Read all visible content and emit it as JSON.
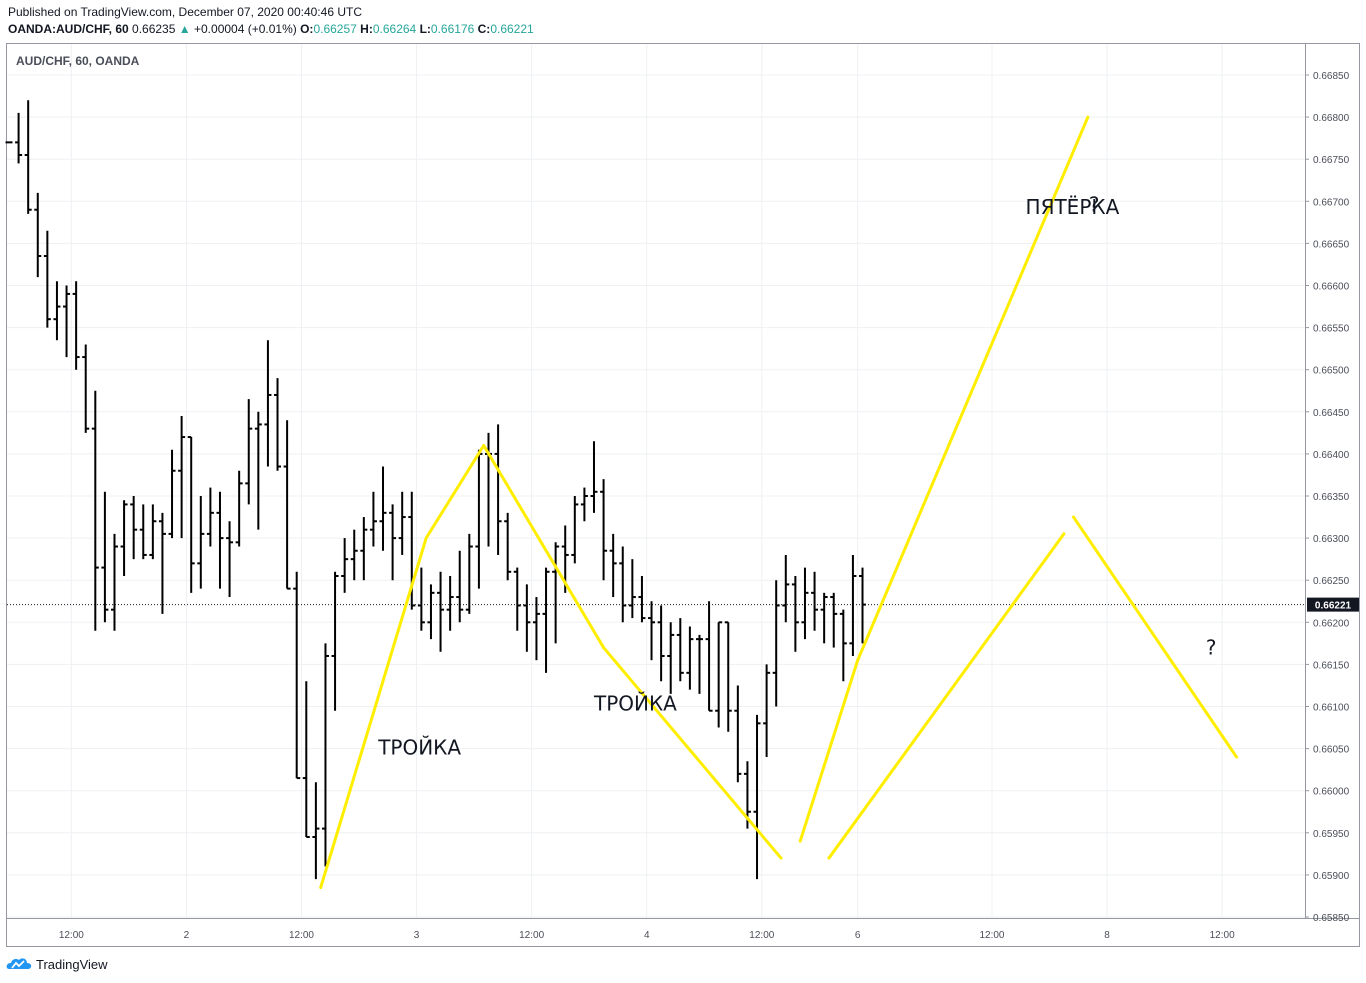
{
  "header": {
    "published": "Published on TradingView.com, December 07, 2020 00:40:46 UTC",
    "symbol": "OANDA:AUD/CHF, 60",
    "last": "0.66235",
    "change": "+0.00004 (+0.01%)",
    "o_label": "O:",
    "o_value": "0.66257",
    "h_label": "H:",
    "h_value": "0.66264",
    "l_label": "L:",
    "l_value": "0.66176",
    "c_label": "C:",
    "c_value": "0.66221"
  },
  "watermark": "AUD/CHF, 60, OANDA",
  "footer": {
    "brand": "TradingView"
  },
  "colors": {
    "bars": "#000000",
    "annotation": "#ffee00",
    "price_tag_bg": "#131722",
    "up": "#26a69a"
  },
  "chart_data": {
    "type": "ohlc",
    "title": "AUD/CHF, 60, OANDA",
    "current_price": 0.66221,
    "current_price_label": "0.66221",
    "ylim": [
      0.65845,
      0.6688
    ],
    "y_ticks": [
      "0.66850",
      "0.66800",
      "0.66750",
      "0.66700",
      "0.66650",
      "0.66600",
      "0.66550",
      "0.66500",
      "0.66450",
      "0.66400",
      "0.66350",
      "0.66300",
      "0.66250",
      "0.66200",
      "0.66150",
      "0.66100",
      "0.66050",
      "0.66000",
      "0.65950",
      "0.65900",
      "0.65850"
    ],
    "x_ticks": [
      {
        "label": "12:00",
        "i": 6.5
      },
      {
        "label": "2",
        "i": 18.5
      },
      {
        "label": "12:00",
        "i": 30.5
      },
      {
        "label": "3",
        "i": 42.5
      },
      {
        "label": "12:00",
        "i": 54.5
      },
      {
        "label": "4",
        "i": 66.5
      },
      {
        "label": "12:00",
        "i": 78.5
      },
      {
        "label": "6",
        "i": 88.5
      },
      {
        "label": "12:00",
        "i": 102.5
      },
      {
        "label": "8",
        "i": 114.5
      },
      {
        "label": "12:00",
        "i": 126.5
      }
    ],
    "grid": true,
    "bars": [
      [
        0.6677,
        0.6677,
        0.6677,
        0.6677
      ],
      [
        0.6677,
        0.66805,
        0.66745,
        0.66755
      ],
      [
        0.66755,
        0.6682,
        0.66685,
        0.6669
      ],
      [
        0.6669,
        0.6671,
        0.6661,
        0.66635
      ],
      [
        0.66635,
        0.66665,
        0.6655,
        0.6656
      ],
      [
        0.6656,
        0.66605,
        0.66535,
        0.66575
      ],
      [
        0.66575,
        0.666,
        0.66515,
        0.6659
      ],
      [
        0.6659,
        0.66605,
        0.665,
        0.66515
      ],
      [
        0.66515,
        0.6653,
        0.66425,
        0.6643
      ],
      [
        0.6643,
        0.66475,
        0.6619,
        0.66265
      ],
      [
        0.66265,
        0.66355,
        0.662,
        0.66215
      ],
      [
        0.66215,
        0.66305,
        0.6619,
        0.6629
      ],
      [
        0.6629,
        0.66345,
        0.66255,
        0.6634
      ],
      [
        0.6634,
        0.6635,
        0.66275,
        0.6631
      ],
      [
        0.6631,
        0.6634,
        0.66275,
        0.6628
      ],
      [
        0.6628,
        0.6634,
        0.66275,
        0.6632
      ],
      [
        0.6632,
        0.6633,
        0.6621,
        0.66305
      ],
      [
        0.66305,
        0.66405,
        0.663,
        0.6638
      ],
      [
        0.6638,
        0.66445,
        0.663,
        0.6642
      ],
      [
        0.6642,
        0.6642,
        0.66235,
        0.6627
      ],
      [
        0.6627,
        0.6635,
        0.6624,
        0.66305
      ],
      [
        0.66305,
        0.6636,
        0.6629,
        0.6633
      ],
      [
        0.6633,
        0.66355,
        0.6624,
        0.663
      ],
      [
        0.663,
        0.6632,
        0.6623,
        0.66295
      ],
      [
        0.66295,
        0.6638,
        0.6629,
        0.66365
      ],
      [
        0.66365,
        0.66465,
        0.6634,
        0.6643
      ],
      [
        0.6643,
        0.6645,
        0.6631,
        0.66435
      ],
      [
        0.66435,
        0.66535,
        0.66385,
        0.6647
      ],
      [
        0.6647,
        0.6649,
        0.6638,
        0.66385
      ],
      [
        0.66385,
        0.6644,
        0.6624,
        0.6624
      ],
      [
        0.6624,
        0.6626,
        0.66015,
        0.66015
      ],
      [
        0.66015,
        0.6613,
        0.65945,
        0.65945
      ],
      [
        0.65945,
        0.6601,
        0.65895,
        0.65955
      ],
      [
        0.65955,
        0.66175,
        0.6591,
        0.6616
      ],
      [
        0.6616,
        0.6626,
        0.66095,
        0.66255
      ],
      [
        0.66255,
        0.663,
        0.66235,
        0.66275
      ],
      [
        0.66275,
        0.6631,
        0.6625,
        0.66285
      ],
      [
        0.66285,
        0.66325,
        0.6625,
        0.6631
      ],
      [
        0.6631,
        0.66355,
        0.6629,
        0.6632
      ],
      [
        0.6632,
        0.66385,
        0.66285,
        0.6633
      ],
      [
        0.6633,
        0.6634,
        0.6625,
        0.663
      ],
      [
        0.663,
        0.66355,
        0.6628,
        0.66325
      ],
      [
        0.66325,
        0.66355,
        0.66215,
        0.6622
      ],
      [
        0.6622,
        0.66265,
        0.6619,
        0.662
      ],
      [
        0.662,
        0.66245,
        0.6618,
        0.66235
      ],
      [
        0.66235,
        0.6626,
        0.66165,
        0.66215
      ],
      [
        0.66215,
        0.66255,
        0.6619,
        0.6623
      ],
      [
        0.6623,
        0.66285,
        0.662,
        0.66215
      ],
      [
        0.66215,
        0.66305,
        0.6621,
        0.6629
      ],
      [
        0.6629,
        0.66405,
        0.6624,
        0.664
      ],
      [
        0.664,
        0.66425,
        0.6629,
        0.664
      ],
      [
        0.664,
        0.66435,
        0.6628,
        0.6632
      ],
      [
        0.6632,
        0.6633,
        0.6625,
        0.6626
      ],
      [
        0.6626,
        0.66265,
        0.6619,
        0.6622
      ],
      [
        0.6622,
        0.66245,
        0.66165,
        0.662
      ],
      [
        0.662,
        0.6623,
        0.66155,
        0.6621
      ],
      [
        0.6621,
        0.66265,
        0.6614,
        0.6626
      ],
      [
        0.6626,
        0.66295,
        0.66175,
        0.6629
      ],
      [
        0.6629,
        0.66315,
        0.66235,
        0.6628
      ],
      [
        0.6628,
        0.6635,
        0.6627,
        0.6634
      ],
      [
        0.6634,
        0.6636,
        0.6632,
        0.6635
      ],
      [
        0.6635,
        0.66415,
        0.6633,
        0.66355
      ],
      [
        0.66355,
        0.6637,
        0.6625,
        0.66285
      ],
      [
        0.66285,
        0.66305,
        0.6623,
        0.6627
      ],
      [
        0.6627,
        0.6629,
        0.662,
        0.6622
      ],
      [
        0.6622,
        0.66275,
        0.66205,
        0.6623
      ],
      [
        0.6623,
        0.66255,
        0.662,
        0.66205
      ],
      [
        0.66205,
        0.66225,
        0.66155,
        0.662
      ],
      [
        0.662,
        0.6622,
        0.6613,
        0.6616
      ],
      [
        0.6616,
        0.662,
        0.66115,
        0.66185
      ],
      [
        0.66185,
        0.66205,
        0.6613,
        0.6614
      ],
      [
        0.6614,
        0.66195,
        0.6612,
        0.6618
      ],
      [
        0.6618,
        0.66185,
        0.66115,
        0.6618
      ],
      [
        0.6618,
        0.66225,
        0.66095,
        0.66095
      ],
      [
        0.66095,
        0.662,
        0.66075,
        0.662
      ],
      [
        0.662,
        0.662,
        0.6607,
        0.66095
      ],
      [
        0.66095,
        0.66125,
        0.6601,
        0.6602
      ],
      [
        0.6602,
        0.66035,
        0.65955,
        0.65975
      ],
      [
        0.65975,
        0.6609,
        0.65895,
        0.6608
      ],
      [
        0.6608,
        0.6615,
        0.6604,
        0.6614
      ],
      [
        0.6614,
        0.6625,
        0.661,
        0.6622
      ],
      [
        0.6622,
        0.6628,
        0.662,
        0.66245
      ],
      [
        0.66245,
        0.66255,
        0.66165,
        0.662
      ],
      [
        0.662,
        0.66265,
        0.6618,
        0.66235
      ],
      [
        0.66235,
        0.6626,
        0.6619,
        0.66215
      ],
      [
        0.66215,
        0.66235,
        0.66175,
        0.6623
      ],
      [
        0.6623,
        0.66235,
        0.6617,
        0.6621
      ],
      [
        0.6621,
        0.66215,
        0.6613,
        0.66175
      ],
      [
        0.66175,
        0.6628,
        0.6616,
        0.66255
      ],
      [
        0.66255,
        0.66265,
        0.66175,
        0.66221
      ]
    ],
    "annotation_lines": [
      [
        [
          32.5,
          0.65885
        ],
        [
          43.5,
          0.663
        ]
      ],
      [
        [
          43.5,
          0.663
        ],
        [
          49.5,
          0.6641
        ]
      ],
      [
        [
          49.5,
          0.6641
        ],
        [
          62.0,
          0.6617
        ]
      ],
      [
        [
          62.0,
          0.6617
        ],
        [
          80.5,
          0.6592
        ]
      ],
      [
        [
          82.5,
          0.6594
        ],
        [
          88.5,
          0.66155
        ]
      ],
      [
        [
          88.5,
          0.66155
        ],
        [
          112.5,
          0.668
        ]
      ],
      [
        [
          85.5,
          0.6592
        ],
        [
          110.0,
          0.66305
        ]
      ],
      [
        [
          111.0,
          0.66325
        ],
        [
          128.0,
          0.6604
        ]
      ]
    ],
    "annotations": [
      {
        "text": "ТРОЙКА",
        "i": 38.5,
        "y": 0.66043
      },
      {
        "text": "ТРОЙКА",
        "i": 61.0,
        "y": 0.66095
      },
      {
        "text": "ПЯТЁРКА",
        "i": 106.0,
        "y": 0.66685
      },
      {
        "text": "?",
        "i": 112.6,
        "y": 0.66688
      },
      {
        "text": "?",
        "i": 124.8,
        "y": 0.66162
      }
    ]
  }
}
